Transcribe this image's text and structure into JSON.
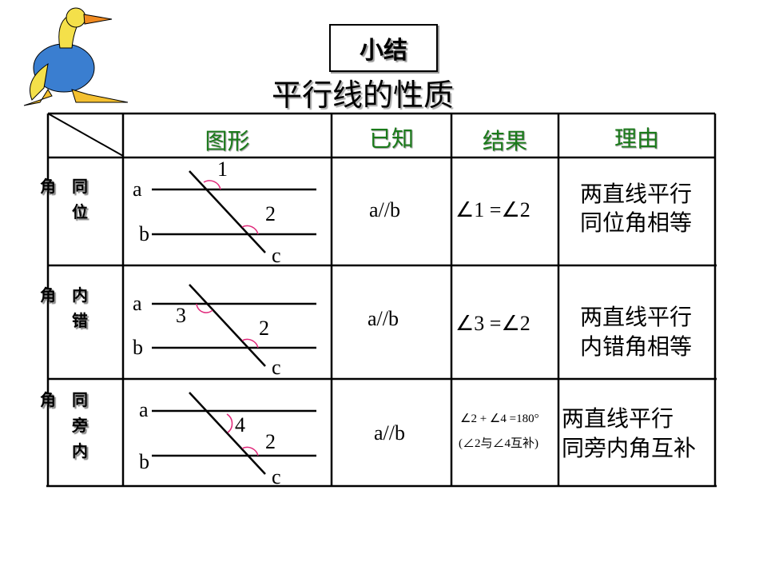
{
  "title": "小结",
  "subtitle": "平行线的性质",
  "headers": [
    "图形",
    "已知",
    "结果",
    "理由"
  ],
  "rows": [
    {
      "label_a": "角",
      "label_b": "同",
      "label_c": "位",
      "known": "a//b",
      "result": "∠1 =∠2",
      "reason1": "两直线平行",
      "reason2": "同位角相等",
      "angle1": "1",
      "angle2": "2"
    },
    {
      "label_a": "角",
      "label_b": "内",
      "label_c": "错",
      "known": "a//b",
      "result": "∠3 =∠2",
      "reason1": "两直线平行",
      "reason2": "内错角相等",
      "angle1": "3",
      "angle2": "2"
    },
    {
      "label_a": "角",
      "label_b": "同",
      "label_c": "旁",
      "label_d": "内",
      "known": "a//b",
      "result": "∠2 + ∠4 =180°",
      "result_note": "(∠2与∠4互补)",
      "reason1": "两直线平行",
      "reason2": "同旁内角互补",
      "angle1": "4",
      "angle2": "2"
    }
  ],
  "line_labels": {
    "a": "a",
    "b": "b",
    "c": "c"
  },
  "colors": {
    "header_text": "#1a7a1a",
    "angle_arc": "#e0287a"
  }
}
